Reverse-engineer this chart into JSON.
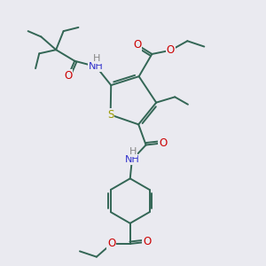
{
  "bg_color": "#eaeaf0",
  "bond_color": "#336655",
  "atom_colors": {
    "N": "#3333cc",
    "O": "#cc0000",
    "S": "#999900",
    "H": "#888888"
  },
  "figsize": [
    3.0,
    3.0
  ],
  "dpi": 100
}
